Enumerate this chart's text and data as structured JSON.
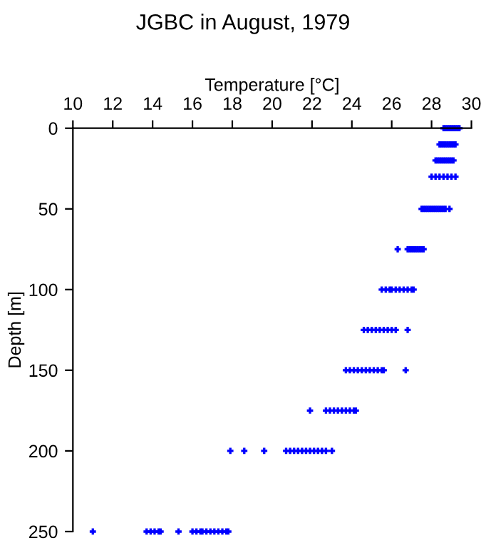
{
  "chart_data": {
    "type": "scatter",
    "title": "JGBC in August, 1979",
    "xlabel": "Temperature [°C]",
    "ylabel": "Depth [m]",
    "series": [
      {
        "color": "#0000ff",
        "x": [
          28.6,
          28.7,
          28.8,
          28.9,
          29.0,
          29.1,
          29.2,
          29.3,
          29.4,
          28.4,
          28.5,
          28.6,
          28.7,
          28.8,
          28.9,
          29.0,
          29.1,
          29.2,
          28.2,
          28.3,
          28.4,
          28.5,
          28.6,
          28.7,
          28.8,
          28.9,
          29.0,
          29.1,
          28.0,
          28.2,
          28.4,
          28.6,
          28.8,
          29.0,
          29.2,
          27.5,
          27.6,
          27.7,
          27.8,
          27.9,
          28.0,
          28.1,
          28.2,
          28.3,
          28.4,
          28.5,
          28.6,
          28.7,
          28.9,
          26.3,
          26.8,
          26.9,
          27.0,
          27.1,
          27.2,
          27.3,
          27.4,
          27.5,
          27.6,
          25.5,
          25.7,
          25.9,
          26.0,
          26.2,
          26.4,
          26.6,
          26.8,
          27.0,
          27.1,
          24.6,
          24.8,
          25.0,
          25.2,
          25.4,
          25.6,
          25.8,
          26.0,
          26.2,
          26.8,
          23.7,
          23.9,
          24.1,
          24.3,
          24.5,
          24.7,
          24.9,
          25.1,
          25.3,
          25.5,
          25.6,
          26.7,
          21.9,
          22.7,
          22.9,
          23.1,
          23.3,
          23.5,
          23.7,
          23.9,
          24.1,
          24.2,
          17.9,
          18.6,
          19.6,
          20.7,
          20.9,
          21.1,
          21.3,
          21.5,
          21.7,
          21.9,
          22.1,
          22.3,
          22.5,
          22.7,
          23.0,
          11.0,
          13.7,
          13.9,
          14.1,
          14.3,
          14.4,
          15.3,
          16.0,
          16.2,
          16.4,
          16.5,
          16.7,
          16.9,
          17.1,
          17.3,
          17.5,
          17.7,
          17.8
        ],
        "values": [
          0,
          0,
          0,
          0,
          0,
          0,
          0,
          0,
          0,
          10,
          10,
          10,
          10,
          10,
          10,
          10,
          10,
          10,
          20,
          20,
          20,
          20,
          20,
          20,
          20,
          20,
          20,
          20,
          30,
          30,
          30,
          30,
          30,
          30,
          30,
          50,
          50,
          50,
          50,
          50,
          50,
          50,
          50,
          50,
          50,
          50,
          50,
          50,
          50,
          75,
          75,
          75,
          75,
          75,
          75,
          75,
          75,
          75,
          75,
          100,
          100,
          100,
          100,
          100,
          100,
          100,
          100,
          100,
          100,
          125,
          125,
          125,
          125,
          125,
          125,
          125,
          125,
          125,
          125,
          150,
          150,
          150,
          150,
          150,
          150,
          150,
          150,
          150,
          150,
          150,
          150,
          175,
          175,
          175,
          175,
          175,
          175,
          175,
          175,
          175,
          175,
          200,
          200,
          200,
          200,
          200,
          200,
          200,
          200,
          200,
          200,
          200,
          200,
          200,
          200,
          200,
          250,
          250,
          250,
          250,
          250,
          250,
          250,
          250,
          250,
          250,
          250,
          250,
          250,
          250,
          250,
          250,
          250,
          250
        ]
      }
    ],
    "marker": "cross",
    "grid": false,
    "xlim": [
      10,
      30
    ],
    "xticks": [
      10,
      12,
      14,
      16,
      18,
      20,
      22,
      24,
      26,
      28,
      30
    ],
    "ylim": [
      250,
      0
    ],
    "yticks": [
      0,
      50,
      100,
      150,
      200,
      250
    ]
  }
}
